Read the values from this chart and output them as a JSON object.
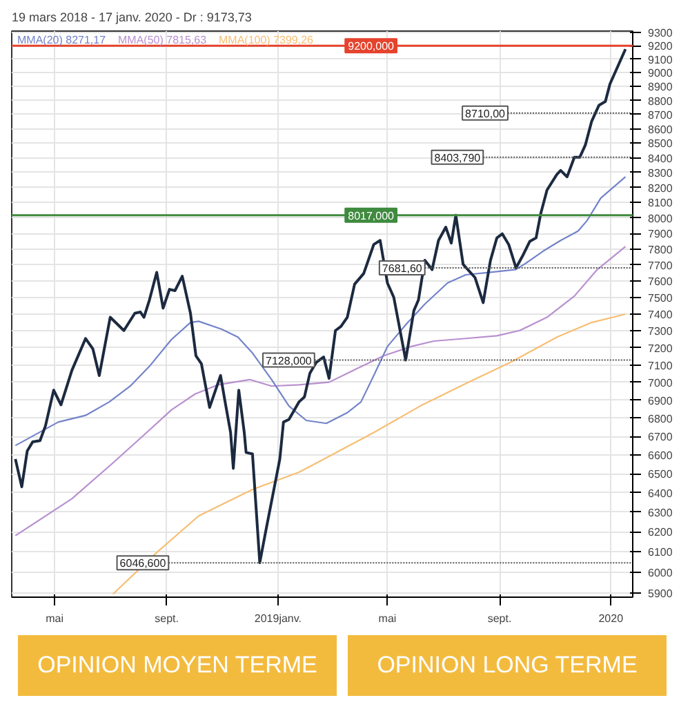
{
  "chart_data": {
    "type": "line",
    "title": "19 mars 2018 - 17 janv. 2020 - Dr : 9173,73",
    "log": "y",
    "grid": true,
    "legend": "top left",
    "xlim": [
      "2018-03-15",
      "2020-01-25"
    ],
    "xticks": [
      {
        "value": "2018-05-01",
        "label": "mai"
      },
      {
        "value": "2018-09-01",
        "label": "sept."
      },
      {
        "value": "2019-01-01",
        "label": "2019janv."
      },
      {
        "value": "2019-05-01",
        "label": "mai"
      },
      {
        "value": "2019-09-01",
        "label": "sept."
      },
      {
        "value": "2020-01-01",
        "label": "2020"
      }
    ],
    "ylim": [
      5880,
      9310
    ],
    "yticks": [
      5900,
      6000,
      6100,
      6200,
      6300,
      6400,
      6500,
      6600,
      6700,
      6800,
      6900,
      7000,
      7100,
      7200,
      7300,
      7400,
      7500,
      7600,
      7700,
      7800,
      7900,
      8000,
      8100,
      8200,
      8300,
      8400,
      8500,
      8600,
      8700,
      8800,
      8900,
      9000,
      9100,
      9200,
      9300
    ],
    "series": [
      {
        "color": "#1c2a40",
        "x": [
          "2018-03-19",
          "2018-03-26",
          "2018-04-01",
          "2018-04-07",
          "2018-04-15",
          "2018-04-21",
          "2018-04-30",
          "2018-05-08",
          "2018-05-20",
          "2018-06-04",
          "2018-06-12",
          "2018-06-19",
          "2018-07-01",
          "2018-07-16",
          "2018-07-28",
          "2018-08-03",
          "2018-08-07",
          "2018-08-13",
          "2018-08-21",
          "2018-08-28",
          "2018-09-04",
          "2018-09-10",
          "2018-09-18",
          "2018-09-27",
          "2018-10-03",
          "2018-10-09",
          "2018-10-18",
          "2018-10-30",
          "2018-11-04",
          "2018-11-10",
          "2018-11-13",
          "2018-11-19",
          "2018-11-25",
          "2018-11-27",
          "2018-12-04",
          "2018-12-12",
          "2018-12-19",
          "2019-01-03",
          "2019-01-07",
          "2019-01-13",
          "2019-01-24",
          "2019-01-30",
          "2019-02-05",
          "2019-02-12",
          "2019-02-20",
          "2019-02-26",
          "2019-03-05",
          "2019-03-11",
          "2019-03-18",
          "2019-03-26",
          "2019-04-05",
          "2019-04-16",
          "2019-04-23",
          "2019-05-01",
          "2019-05-08",
          "2019-05-21",
          "2019-05-30",
          "2019-06-04",
          "2019-06-11",
          "2019-06-19",
          "2019-06-26",
          "2019-07-04",
          "2019-07-10",
          "2019-07-15",
          "2019-07-23",
          "2019-08-05",
          "2019-08-14",
          "2019-08-22",
          "2019-08-29",
          "2019-09-04",
          "2019-09-11",
          "2019-09-19",
          "2019-09-26",
          "2019-10-04",
          "2019-10-11",
          "2019-10-16",
          "2019-10-23",
          "2019-11-03",
          "2019-11-07",
          "2019-11-14",
          "2019-11-22",
          "2019-11-28",
          "2019-12-04",
          "2019-12-11",
          "2019-12-19",
          "2019-12-26",
          "2019-12-31",
          "2020-01-17"
        ],
        "values": [
          6578,
          6431,
          6621,
          6670,
          6677,
          6757,
          6956,
          6874,
          7069,
          7254,
          7193,
          7039,
          7380,
          7301,
          7404,
          7412,
          7380,
          7484,
          7654,
          7435,
          7549,
          7541,
          7630,
          7404,
          7153,
          7107,
          6859,
          7039,
          6890,
          6721,
          6528,
          6956,
          6721,
          6613,
          6605,
          6047,
          6214,
          6578,
          6778,
          6793,
          6890,
          6918,
          7053,
          7115,
          7146,
          7023,
          7301,
          7325,
          7380,
          7581,
          7647,
          7829,
          7855,
          7588,
          7500,
          7128,
          7420,
          7484,
          7729,
          7671,
          7855,
          7940,
          7838,
          8017,
          7704,
          7622,
          7468,
          7729,
          7871,
          7897,
          7829,
          7682,
          7754,
          7848,
          7871,
          8025,
          8183,
          8289,
          8314,
          8271,
          8404,
          8404,
          8487,
          8653,
          8766,
          8793,
          8918,
          9174
        ]
      },
      {
        "name": "MMA(20)  8271,17",
        "color": "#7383c9",
        "x": [
          "2018-03-19",
          "2018-05-05",
          "2018-06-04",
          "2018-06-30",
          "2018-07-23",
          "2018-08-13",
          "2018-09-06",
          "2018-09-27",
          "2018-10-06",
          "2018-10-31",
          "2018-11-18",
          "2018-12-04",
          "2018-12-25",
          "2019-01-13",
          "2019-02-01",
          "2019-02-23",
          "2019-03-18",
          "2019-04-02",
          "2019-04-16",
          "2019-05-01",
          "2019-05-22",
          "2019-06-11",
          "2019-07-06",
          "2019-07-26",
          "2019-08-24",
          "2019-09-19",
          "2019-09-28",
          "2019-10-19",
          "2019-11-07",
          "2019-11-26",
          "2019-12-06",
          "2019-12-21",
          "2020-01-17"
        ],
        "values": [
          6650,
          6778,
          6815,
          6890,
          6979,
          7092,
          7247,
          7349,
          7356,
          7309,
          7262,
          7169,
          7016,
          6867,
          6787,
          6771,
          6830,
          6890,
          7039,
          7207,
          7341,
          7459,
          7589,
          7639,
          7656,
          7672,
          7704,
          7788,
          7855,
          7915,
          7983,
          8130,
          8271
        ]
      },
      {
        "name": "MMA(50)  7815,63",
        "color": "#b88fcf",
        "x": [
          "2018-03-19",
          "2018-05-20",
          "2018-07-04",
          "2018-08-10",
          "2018-09-06",
          "2018-10-02",
          "2018-10-27",
          "2018-12-01",
          "2018-12-25",
          "2019-01-24",
          "2019-02-26",
          "2019-03-28",
          "2019-04-27",
          "2019-05-27",
          "2019-06-21",
          "2019-07-26",
          "2019-08-29",
          "2019-09-23",
          "2019-10-23",
          "2019-11-22",
          "2019-12-17",
          "2020-01-17"
        ],
        "values": [
          6181,
          6369,
          6557,
          6721,
          6845,
          6934,
          6986,
          7016,
          6979,
          6986,
          7001,
          7077,
          7153,
          7207,
          7239,
          7254,
          7270,
          7301,
          7380,
          7508,
          7671,
          7816
        ]
      },
      {
        "name": "MMA(100)  7399,26",
        "color": "#f7be72",
        "x": [
          "2018-07-04",
          "2018-08-22",
          "2018-10-06",
          "2018-12-04",
          "2019-01-24",
          "2019-02-26",
          "2019-04-16",
          "2019-06-06",
          "2019-07-26",
          "2019-09-13",
          "2019-11-03",
          "2019-12-11",
          "2020-01-17"
        ],
        "values": [
          5895,
          6101,
          6281,
          6417,
          6508,
          6592,
          6721,
          6867,
          6994,
          7115,
          7262,
          7349,
          7399
        ]
      }
    ],
    "ref_lines": [
      {
        "axis": "y",
        "value": 9200,
        "label": "9200,000",
        "color": "#e5432d",
        "line_style": "solid"
      },
      {
        "axis": "y",
        "value": 8017,
        "label": "8017,000",
        "color": "#3f8a3f",
        "line_style": "solid"
      },
      {
        "axis": "y",
        "value": 8710,
        "label": "8710,00",
        "color": "#555555",
        "line_style": "dotted"
      },
      {
        "axis": "y",
        "value": 8403.79,
        "label": "8403,790",
        "color": "#555555",
        "line_style": "dotted"
      },
      {
        "axis": "y",
        "value": 7681.6,
        "label": "7681,60",
        "color": "#555555",
        "line_style": "dotted"
      },
      {
        "axis": "y",
        "value": 7128,
        "label": "7128,000",
        "color": "#555555",
        "line_style": "dotted"
      },
      {
        "axis": "y",
        "value": 6046.6,
        "label": "6046,600",
        "color": "#555555",
        "line_style": "dotted"
      }
    ],
    "annotations": [
      "OPINION MOYEN TERME",
      "OPINION LONG TERME"
    ]
  }
}
